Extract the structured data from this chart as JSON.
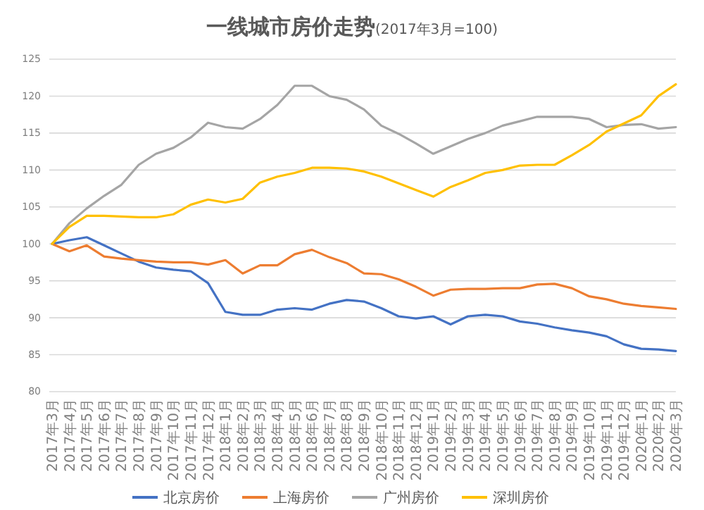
{
  "chart_data": {
    "type": "line",
    "title": "一线城市房价走势",
    "subtitle": "(2017年3月=100)",
    "categories": [
      "2017年3月",
      "2017年4月",
      "2017年5月",
      "2017年6月",
      "2017年7月",
      "2017年8月",
      "2017年9月",
      "2017年10月",
      "2017年11月",
      "2017年12月",
      "2018年1月",
      "2018年2月",
      "2018年3月",
      "2018年4月",
      "2018年5月",
      "2018年6月",
      "2018年7月",
      "2018年8月",
      "2018年9月",
      "2018年10月",
      "2018年11月",
      "2018年12月",
      "2019年1月",
      "2019年2月",
      "2019年3月",
      "2019年4月",
      "2019年5月",
      "2019年6月",
      "2019年7月",
      "2019年8月",
      "2019年9月",
      "2019年10月",
      "2019年11月",
      "2019年12月",
      "2020年1月",
      "2020年2月",
      "2020年3月"
    ],
    "series": [
      {
        "name": "北京房价",
        "color": "#4472c4",
        "values": [
          100,
          100.5,
          100.9,
          99.8,
          98.7,
          97.6,
          96.8,
          96.5,
          96.3,
          94.7,
          90.8,
          90.4,
          90.4,
          91.1,
          91.3,
          91.1,
          91.9,
          92.4,
          92.2,
          91.3,
          90.2,
          89.9,
          90.2,
          89.1,
          90.2,
          90.4,
          90.2,
          89.5,
          89.2,
          88.7,
          88.3,
          88,
          87.5,
          86.4,
          85.8,
          85.7,
          85.5
        ]
      },
      {
        "name": "上海房价",
        "color": "#ed7d31",
        "values": [
          100,
          99,
          99.8,
          98.3,
          98,
          97.8,
          97.6,
          97.5,
          97.5,
          97.2,
          97.8,
          96,
          97.1,
          97.1,
          98.6,
          99.2,
          98.2,
          97.4,
          96,
          95.9,
          95.2,
          94.2,
          93,
          93.8,
          93.9,
          93.9,
          94,
          94,
          94.5,
          94.6,
          94,
          92.9,
          92.5,
          91.9,
          91.6,
          91.4,
          91.2
        ]
      },
      {
        "name": "广州房价",
        "color": "#a5a5a5",
        "values": [
          100,
          102.8,
          104.8,
          106.5,
          108,
          110.7,
          112.2,
          113,
          114.4,
          116.4,
          115.8,
          115.6,
          116.9,
          118.8,
          121.4,
          121.4,
          120,
          119.5,
          118.2,
          116,
          114.9,
          113.6,
          112.2,
          113.2,
          114.2,
          115,
          116,
          116.6,
          117.2,
          117.2,
          117.2,
          116.9,
          115.8,
          116.1,
          116.2,
          115.6,
          115.8
        ]
      },
      {
        "name": "深圳房价",
        "color": "#ffc000",
        "values": [
          100,
          102.3,
          103.8,
          103.8,
          103.7,
          103.6,
          103.6,
          104,
          105.3,
          106,
          105.6,
          106.1,
          108.3,
          109.1,
          109.6,
          110.3,
          110.3,
          110.2,
          109.8,
          109.1,
          108.2,
          107.3,
          106.4,
          107.7,
          108.6,
          109.6,
          110,
          110.6,
          110.7,
          110.7,
          112,
          113.4,
          115.2,
          116.3,
          117.4,
          120,
          121.6
        ]
      }
    ],
    "ylim": [
      80,
      125
    ],
    "yticks": [
      80,
      85,
      90,
      95,
      100,
      105,
      110,
      115,
      120,
      125
    ],
    "grid": "y",
    "legend": "bottom",
    "marker": "none",
    "line_style": "solid"
  }
}
